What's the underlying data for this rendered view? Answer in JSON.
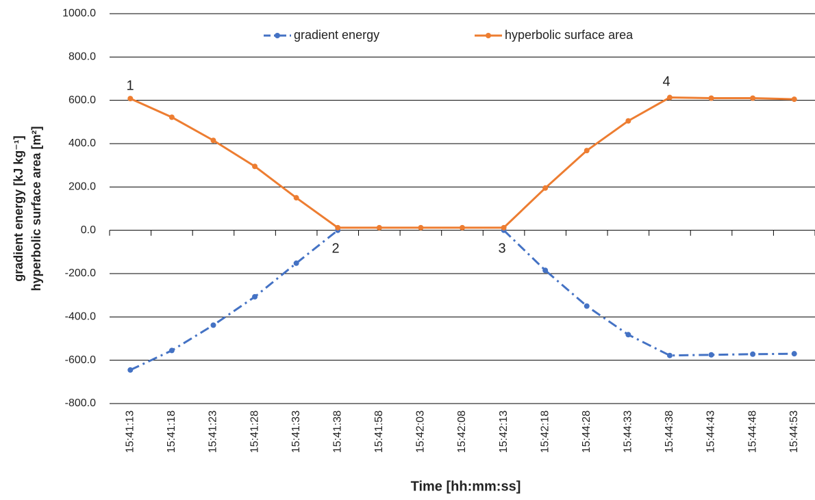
{
  "chart_data": {
    "type": "line",
    "categories": [
      "15:41:13",
      "15:41:18",
      "15:41:23",
      "15:41:28",
      "15:41:33",
      "15:41:38",
      "15:41:58",
      "15:42:03",
      "15:42:08",
      "15:42:13",
      "15:42:18",
      "15:44:28",
      "15:44:33",
      "15:44:38",
      "15:44:43",
      "15:44:48",
      "15:44:53"
    ],
    "series": [
      {
        "name": "gradient energy",
        "color": "#4472c4",
        "dash": "dashdot",
        "values": [
          -645,
          -555,
          -438,
          -307,
          -152,
          0,
          null,
          null,
          null,
          0,
          -185,
          -350,
          -482,
          -578,
          -575,
          -572,
          -570
        ]
      },
      {
        "name": "hyperbolic surface area",
        "color": "#ed7d31",
        "dash": "solid",
        "values": [
          608,
          522,
          415,
          295,
          150,
          12,
          12,
          12,
          12,
          12,
          195,
          368,
          505,
          613,
          610,
          610,
          605
        ]
      }
    ],
    "ylim": [
      -800,
      1000
    ],
    "yticks": [
      {
        "value": -800,
        "label": "-800.0"
      },
      {
        "value": -600,
        "label": "-600.0"
      },
      {
        "value": -400,
        "label": "-400.0"
      },
      {
        "value": -200,
        "label": "-200.0"
      },
      {
        "value": 0,
        "label": "0.0"
      },
      {
        "value": 200,
        "label": "200.0"
      },
      {
        "value": 400,
        "label": "400.0"
      },
      {
        "value": 600,
        "label": "600.0"
      },
      {
        "value": 800,
        "label": "800.0"
      },
      {
        "value": 1000,
        "label": "1000.0"
      }
    ],
    "ylabel": [
      "gradient energy  [kJ kg⁻¹]",
      "hyperbolic surface area [m²]"
    ],
    "xlabel": "Time [hh:mm:ss]",
    "annotations": [
      "1",
      "2",
      "3",
      "4"
    ],
    "grid": true,
    "legend": "top"
  }
}
